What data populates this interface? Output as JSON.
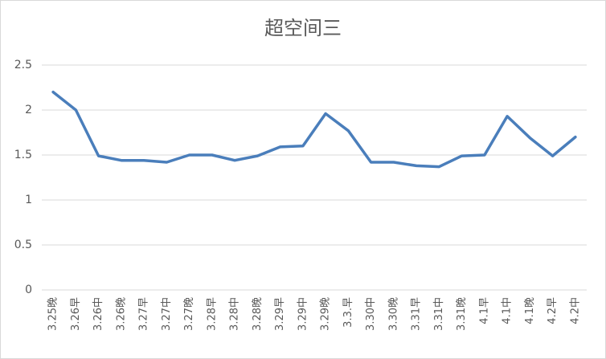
{
  "chart_data": {
    "type": "line",
    "title": "超空间三",
    "categories": [
      "3.25晚",
      "3.26早",
      "3.26中",
      "3.26晚",
      "3.27早",
      "3.27中",
      "3.27晚",
      "3.28早",
      "3.28中",
      "3.28晚",
      "3.29早",
      "3.29中",
      "3.29晚",
      "3.3.早",
      "3.30中",
      "3.30晚",
      "3.31早",
      "3.31中",
      "3.31晚",
      "4.1早",
      "4.1中",
      "4.1晚",
      "4.2早",
      "4.2中"
    ],
    "values": [
      2.2,
      2.0,
      1.49,
      1.44,
      1.44,
      1.42,
      1.5,
      1.5,
      1.44,
      1.49,
      1.59,
      1.6,
      1.96,
      1.77,
      1.42,
      1.42,
      1.38,
      1.37,
      1.49,
      1.5,
      1.93,
      1.69,
      1.49,
      1.7
    ],
    "color": "#4a7ebb",
    "ylim": [
      0,
      2.5
    ],
    "yticks": [
      0,
      0.5,
      1,
      1.5,
      2,
      2.5
    ],
    "grid": true
  }
}
